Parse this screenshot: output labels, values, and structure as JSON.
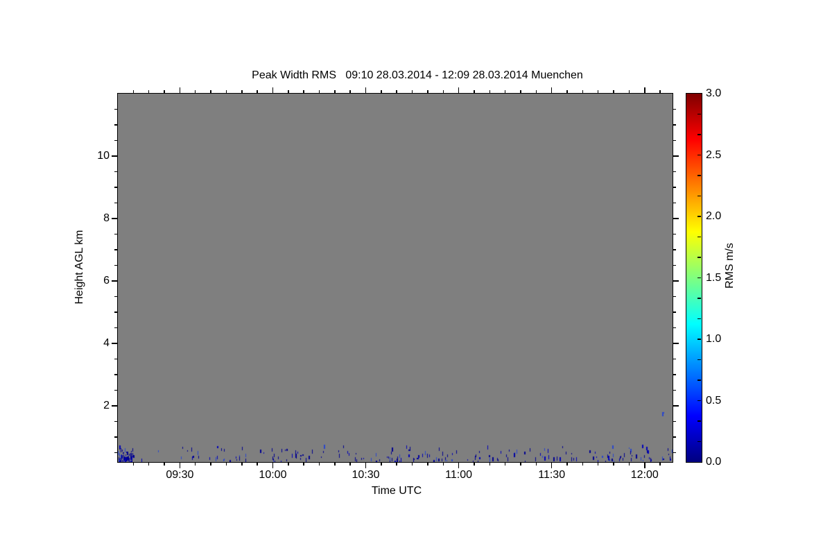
{
  "chart_data": {
    "type": "heatmap",
    "title": "Peak Width RMS   09:10 28.03.2014 - 12:09 28.03.2014 Muenchen",
    "xlabel": "Time UTC",
    "ylabel": "Height AGL km",
    "x_start": "09:10",
    "x_end": "12:09",
    "x_total_minutes": 179,
    "x_major_ticks": [
      {
        "minute": 20,
        "label": "09:30"
      },
      {
        "minute": 50,
        "label": "10:00"
      },
      {
        "minute": 80,
        "label": "10:30"
      },
      {
        "minute": 110,
        "label": "11:00"
      },
      {
        "minute": 140,
        "label": "11:30"
      },
      {
        "minute": 170,
        "label": "12:00"
      }
    ],
    "x_minor_step_minutes": 5,
    "y_range_km": [
      0.2,
      12.0
    ],
    "y_major_ticks": [
      2,
      4,
      6,
      8,
      10
    ],
    "y_minor_step_km": 0.5,
    "no_data_color": "#7f7f7f",
    "grid": false,
    "colorbar": {
      "label": "RMS m/s",
      "min": 0.0,
      "max": 3.0,
      "tick_values": [
        3.0,
        2.5,
        2.0,
        1.5,
        1.0,
        0.5,
        0.0
      ],
      "tick_labels": [
        "3.0",
        "2.5",
        "2.0",
        "1.5",
        "1.0",
        "0.5",
        "0.0"
      ],
      "minor_subdivisions_per_half_unit": 3,
      "colormap": "jet",
      "gradient_stops": [
        {
          "value": 0.0,
          "color": "#00007f"
        },
        {
          "value": 0.375,
          "color": "#0000ff"
        },
        {
          "value": 1.125,
          "color": "#00ffff"
        },
        {
          "value": 1.875,
          "color": "#ffff00"
        },
        {
          "value": 2.625,
          "color": "#ff0000"
        },
        {
          "value": 3.0,
          "color": "#7f0000"
        }
      ]
    },
    "data_features": {
      "description": "Field is almost entirely no-data gray. Sparse low-RMS (≈0-0.5 m/s) dark-blue returns form a shallow band below ≈0.65 km AGL across the whole period, densest right at 09:10, plus one isolated return near 12:05 at ≈1.7 km AGL.",
      "noise_band": {
        "height_km_min": 0.2,
        "height_km_max": 0.65,
        "rms_value_range_ms": [
          0.0,
          0.5
        ],
        "colors": [
          "#000090",
          "#0000b8",
          "#2a46cc"
        ],
        "seed": 42,
        "clusters": [
          {
            "t0": 0,
            "t1": 5,
            "count": 55
          },
          {
            "t0": 5,
            "t1": 33,
            "count": 14
          },
          {
            "t0": 33,
            "t1": 67,
            "count": 40
          },
          {
            "t0": 67,
            "t1": 78,
            "count": 8
          },
          {
            "t0": 78,
            "t1": 108,
            "count": 45
          },
          {
            "t0": 108,
            "t1": 140,
            "count": 34
          },
          {
            "t0": 140,
            "t1": 152,
            "count": 9
          },
          {
            "t0": 152,
            "t1": 179,
            "count": 46
          }
        ]
      },
      "isolated_points": [
        {
          "minute_from_start": 175.6,
          "height_km": 1.7,
          "rms_ms": 0.35,
          "color": "#2a46cc"
        }
      ]
    }
  }
}
